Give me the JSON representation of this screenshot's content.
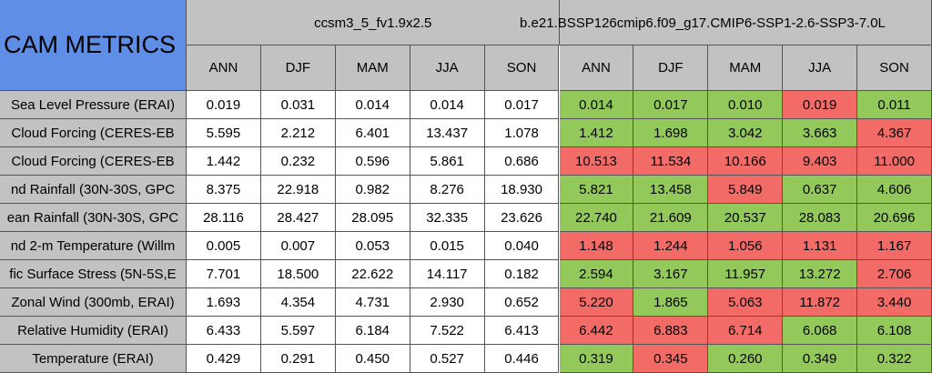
{
  "title": "CAM METRICS",
  "groups": [
    "ccsm3_5_fv1.9x2.5",
    "b.e21.BSSP126cmip6.f09_g17.CMIP6-SSP1-2.6-SSP3-7.0L"
  ],
  "seasons": [
    "ANN",
    "DJF",
    "MAM",
    "JJA",
    "SON"
  ],
  "rows": [
    {
      "label": "Sea Level Pressure (ERAI)",
      "values": [
        "0.019",
        "0.031",
        "0.014",
        "0.014",
        "0.017",
        "0.014",
        "0.017",
        "0.010",
        "0.019",
        "0.011"
      ],
      "colors": [
        "#92c95a",
        "#92c95a",
        "#92c95a",
        "#f26b67",
        "#92c95a"
      ]
    },
    {
      "label": "Cloud Forcing (CERES-EB",
      "values": [
        "5.595",
        "2.212",
        "6.401",
        "13.437",
        "1.078",
        "1.412",
        "1.698",
        "3.042",
        "3.663",
        "4.367"
      ],
      "colors": [
        "#92c95a",
        "#92c95a",
        "#92c95a",
        "#92c95a",
        "#f26b67"
      ]
    },
    {
      "label": "Cloud Forcing (CERES-EB",
      "values": [
        "1.442",
        "0.232",
        "0.596",
        "5.861",
        "0.686",
        "10.513",
        "11.534",
        "10.166",
        "9.403",
        "11.000"
      ],
      "colors": [
        "#f26b67",
        "#f26b67",
        "#f26b67",
        "#f26b67",
        "#f26b67"
      ]
    },
    {
      "label": "nd Rainfall (30N-30S, GPC",
      "values": [
        "8.375",
        "22.918",
        "0.982",
        "8.276",
        "18.930",
        "5.821",
        "13.458",
        "5.849",
        "0.637",
        "4.606"
      ],
      "colors": [
        "#92c95a",
        "#92c95a",
        "#f26b67",
        "#92c95a",
        "#92c95a"
      ]
    },
    {
      "label": "ean Rainfall (30N-30S, GPC",
      "values": [
        "28.116",
        "28.427",
        "28.095",
        "32.335",
        "23.626",
        "22.740",
        "21.609",
        "20.537",
        "28.083",
        "20.696"
      ],
      "colors": [
        "#92c95a",
        "#92c95a",
        "#92c95a",
        "#92c95a",
        "#92c95a"
      ]
    },
    {
      "label": "nd 2-m Temperature (Willm",
      "values": [
        "0.005",
        "0.007",
        "0.053",
        "0.015",
        "0.040",
        "1.148",
        "1.244",
        "1.056",
        "1.131",
        "1.167"
      ],
      "colors": [
        "#f26b67",
        "#f26b67",
        "#f26b67",
        "#f26b67",
        "#f26b67"
      ]
    },
    {
      "label": "fic Surface Stress (5N-5S,E",
      "values": [
        "7.701",
        "18.500",
        "22.622",
        "14.117",
        "0.182",
        "2.594",
        "3.167",
        "11.957",
        "13.272",
        "2.706"
      ],
      "colors": [
        "#92c95a",
        "#92c95a",
        "#92c95a",
        "#92c95a",
        "#f26b67"
      ]
    },
    {
      "label": "Zonal Wind (300mb, ERAI)",
      "values": [
        "1.693",
        "4.354",
        "4.731",
        "2.930",
        "0.652",
        "5.220",
        "1.865",
        "5.063",
        "11.872",
        "3.440"
      ],
      "colors": [
        "#f26b67",
        "#92c95a",
        "#f26b67",
        "#f26b67",
        "#f26b67"
      ]
    },
    {
      "label": "Relative Humidity (ERAI)",
      "values": [
        "6.433",
        "5.597",
        "6.184",
        "7.522",
        "6.413",
        "6.442",
        "6.883",
        "6.714",
        "6.068",
        "6.108"
      ],
      "colors": [
        "#f26b67",
        "#f26b67",
        "#f26b67",
        "#92c95a",
        "#92c95a"
      ]
    },
    {
      "label": "Temperature (ERAI)",
      "values": [
        "0.429",
        "0.291",
        "0.450",
        "0.527",
        "0.446",
        "0.319",
        "0.345",
        "0.260",
        "0.349",
        "0.322"
      ],
      "colors": [
        "#92c95a",
        "#f26b67",
        "#92c95a",
        "#92c95a",
        "#92c95a"
      ]
    }
  ]
}
